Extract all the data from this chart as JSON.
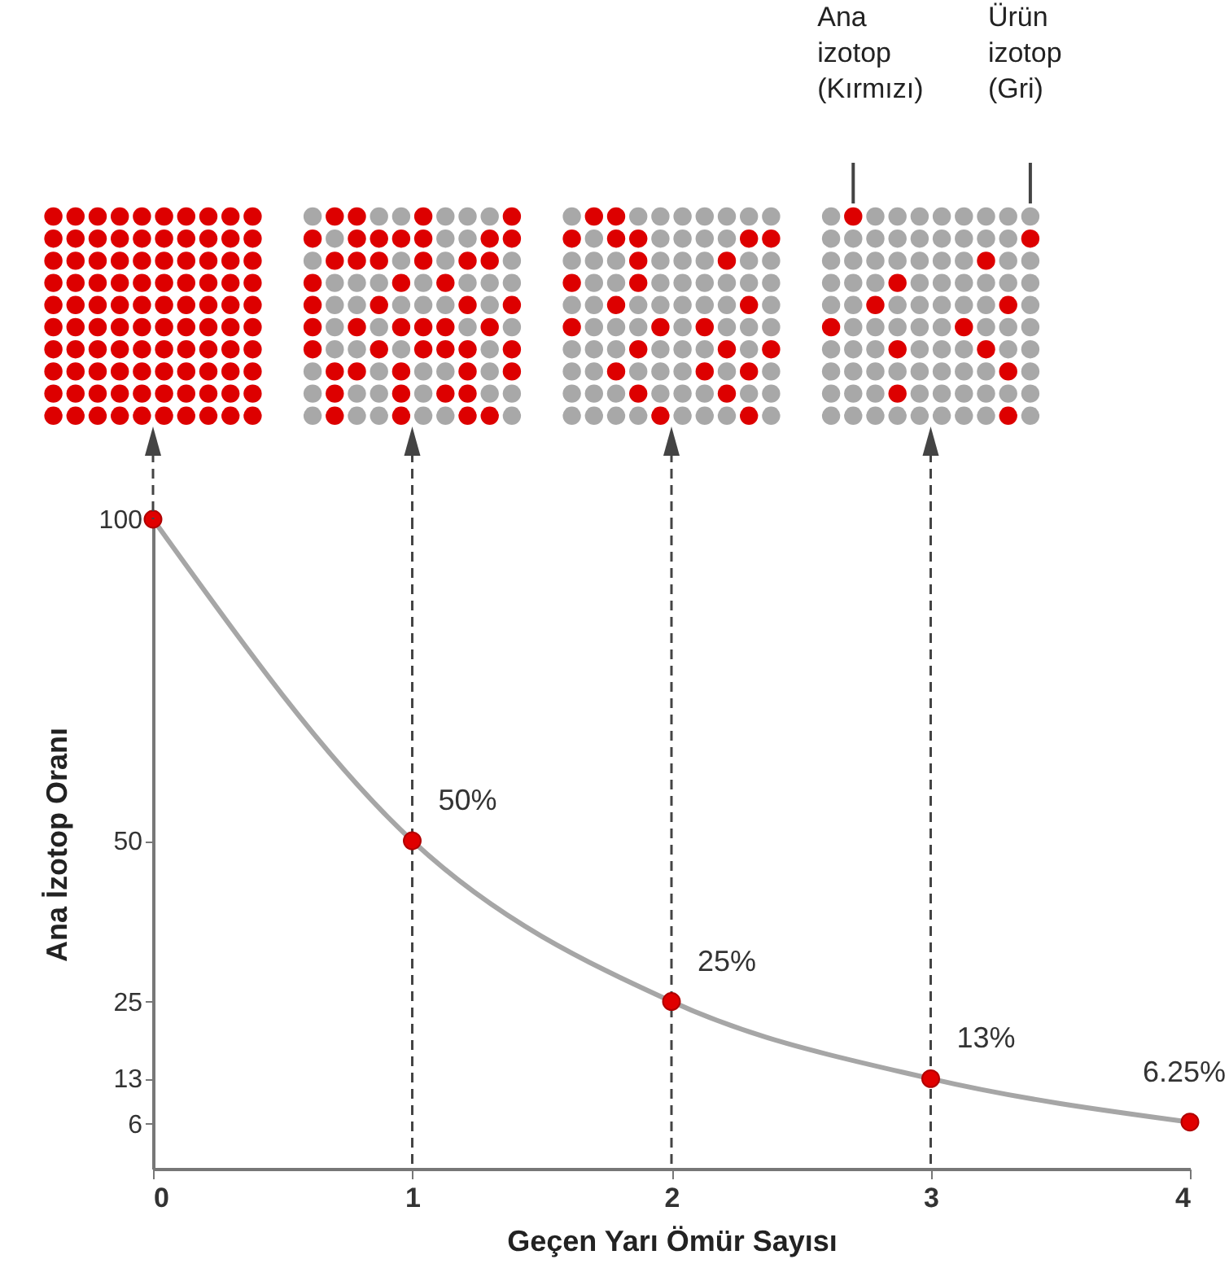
{
  "chart_data": {
    "type": "line",
    "xlabel": "Geçen Yarı Ömür Sayısı",
    "ylabel": "Ana İzotop Oranı",
    "x": [
      0,
      1,
      2,
      3,
      4
    ],
    "series": [
      {
        "color": "#a6a6a6",
        "values": [
          100,
          50,
          25,
          13,
          6.25
        ],
        "value_labels": [
          null,
          "50%",
          "25%",
          "13%",
          "6.25%"
        ]
      }
    ],
    "marker": "circle",
    "xlim": [
      0,
      4
    ],
    "xticks": [
      0,
      1,
      2,
      3,
      4
    ],
    "ylim": [
      -1,
      100
    ],
    "yticks": [
      100,
      50,
      25,
      13,
      6
    ],
    "ref_lines": [
      {
        "axis": "x",
        "value": 1,
        "line_style": "dashed",
        "color": "#444444"
      },
      {
        "axis": "x",
        "value": 2,
        "line_style": "dashed",
        "color": "#444444"
      },
      {
        "axis": "x",
        "value": 3,
        "line_style": "dashed",
        "color": "#444444"
      }
    ],
    "annotations": [
      "Ana izotop (Kırmızı)",
      "Ürün izotop (Gri)"
    ]
  }
}
